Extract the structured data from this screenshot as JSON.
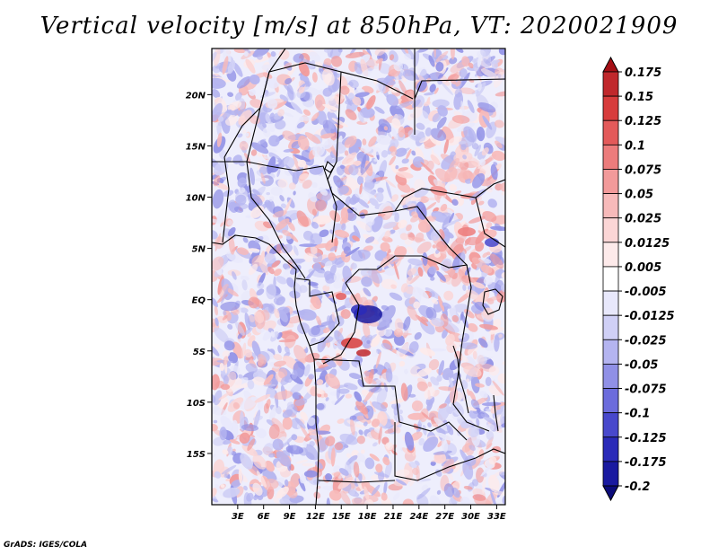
{
  "title": "Vertical velocity [m/s] at 850hPa, VT: 2020021909",
  "footer": "GrADS: IGES/COLA",
  "map": {
    "variable": "Vertical velocity",
    "units": "m/s",
    "level": "850hPa",
    "valid_time": "2020021909",
    "lon_range": [
      0,
      34
    ],
    "lat_range": [
      -20,
      24.5
    ],
    "lat_ticks": [
      {
        "value": 20,
        "label": "20N"
      },
      {
        "value": 15,
        "label": "15N"
      },
      {
        "value": 10,
        "label": "10N"
      },
      {
        "value": 5,
        "label": "5N"
      },
      {
        "value": 0,
        "label": "EQ"
      },
      {
        "value": -5,
        "label": "5S"
      },
      {
        "value": -10,
        "label": "10S"
      },
      {
        "value": -15,
        "label": "15S"
      }
    ],
    "lon_ticks": [
      {
        "value": 3,
        "label": "3E"
      },
      {
        "value": 6,
        "label": "6E"
      },
      {
        "value": 9,
        "label": "9E"
      },
      {
        "value": 12,
        "label": "12E"
      },
      {
        "value": 15,
        "label": "15E"
      },
      {
        "value": 18,
        "label": "18E"
      },
      {
        "value": 21,
        "label": "21E"
      },
      {
        "value": 24,
        "label": "24E"
      },
      {
        "value": 27,
        "label": "27E"
      },
      {
        "value": 30,
        "label": "30E"
      },
      {
        "value": 33,
        "label": "33E"
      }
    ]
  },
  "colorbar": {
    "levels": [
      "0.175",
      "0.15",
      "0.125",
      "0.1",
      "0.075",
      "0.05",
      "0.025",
      "0.0125",
      "0.005",
      "-0.005",
      "-0.0125",
      "-0.025",
      "-0.05",
      "-0.075",
      "-0.1",
      "-0.125",
      "-0.175",
      "-0.2"
    ],
    "colors": [
      "#a50f15",
      "#c0282c",
      "#d73c3c",
      "#e35a5a",
      "#ec7c7c",
      "#f29a9a",
      "#f7baba",
      "#fbd6d6",
      "#fdeaea",
      "#ffffff",
      "#e8e8fb",
      "#d0d0f6",
      "#b4b4f0",
      "#9090e6",
      "#6c6cdc",
      "#4848cc",
      "#2a2ab8",
      "#1a1aa0",
      "#0c0c7a"
    ]
  }
}
